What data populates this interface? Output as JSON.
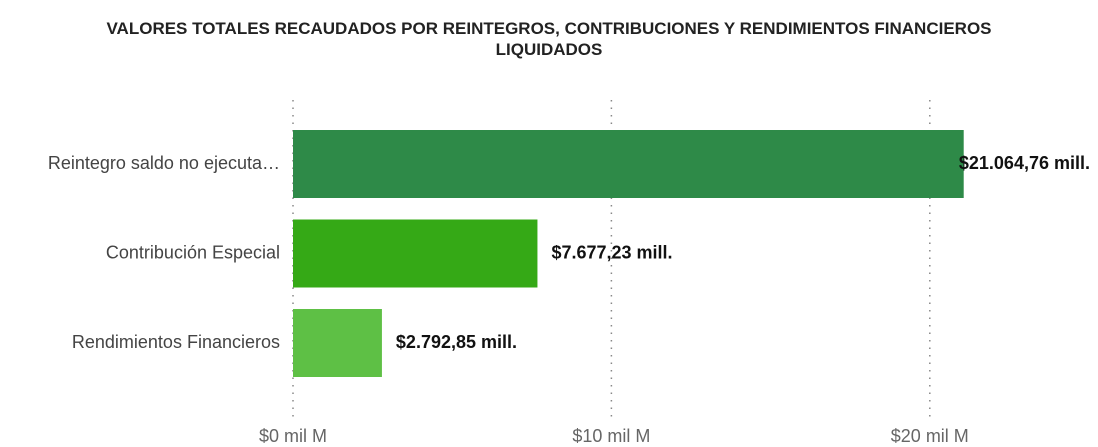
{
  "chart_data": {
    "type": "bar",
    "orientation": "horizontal",
    "title": "VALORES TOTALES RECAUDADOS POR REINTEGROS, CONTRIBUCIONES Y RENDIMIENTOS FINANCIEROS LIQUIDADOS",
    "categories": [
      "Reintegro saldo no ejecuta…",
      "Contribución Especial",
      "Rendimientos Financieros"
    ],
    "values": [
      21.06476,
      7.67723,
      2.79285
    ],
    "value_labels": [
      "$21.064,76 mill.",
      "$7.677,23 mill.",
      "$2.792,85 mill."
    ],
    "colors": [
      "#2e8a48",
      "#35a916",
      "#5ec045"
    ],
    "xlim": [
      0,
      25
    ],
    "xticks": [
      {
        "value": 0,
        "label": "$0 mil M"
      },
      {
        "value": 10,
        "label": "$10 mil M"
      },
      {
        "value": 20,
        "label": "$20 mil M"
      }
    ],
    "grid": true
  }
}
